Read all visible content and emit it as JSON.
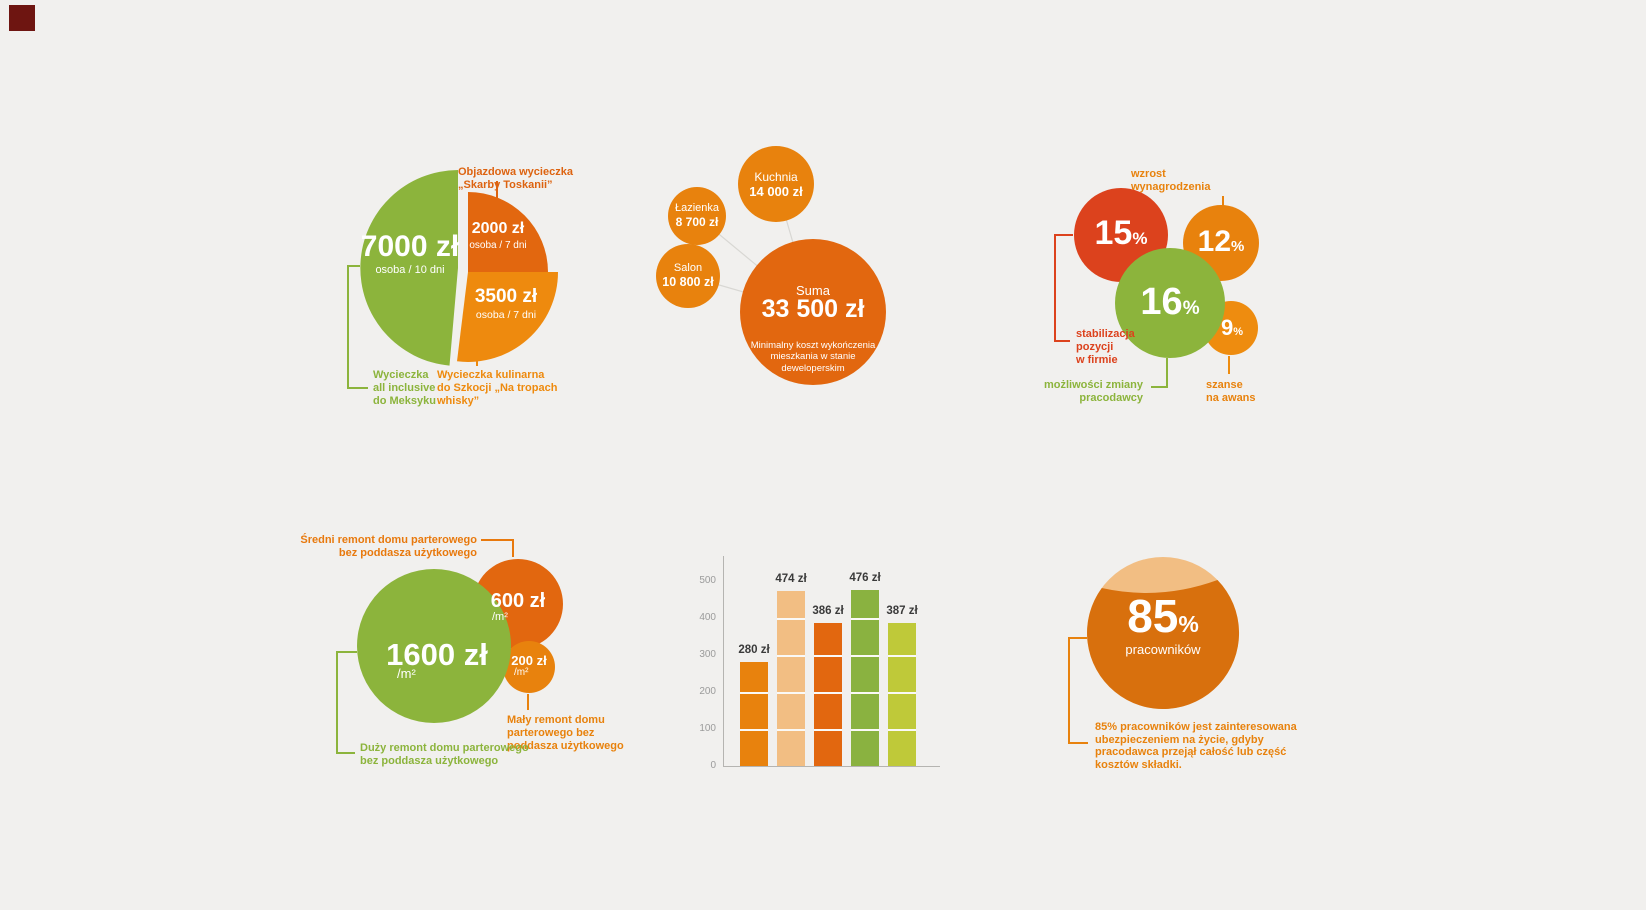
{
  "page": {
    "background": "#F1F0EE",
    "corner_mark_color": "#6E1511"
  },
  "colors": {
    "green": "#8CB43C",
    "dark_orange": "#E2670F",
    "orange": "#E8820D",
    "light_orange": "#EE8A0E",
    "tan": "#F2BE83",
    "red": "#DC421D",
    "bar_green": "#8AB240",
    "yellow_green": "#BFC939",
    "axis_gray": "#B5B4B1",
    "tick_gray": "#9B9B9B",
    "value_text": "#3A3A3A"
  },
  "trip_pie": {
    "slices": {
      "mexico": {
        "value": "7000 zł",
        "unit": "osoba / 10 dni",
        "label": "Wycieczka\nall inclusive\ndo Meksyku"
      },
      "tuscany": {
        "value": "2000 zł",
        "unit": "osoba / 7 dni",
        "label": "Objazdowa wycieczka\n„Skarby Toskanii”"
      },
      "scotland": {
        "value": "3500 zł",
        "unit": "osoba / 7 dni",
        "label": "Wycieczka kulinarna\ndo Szkocji „Na tropach\nwhisky”"
      }
    }
  },
  "apartment_bubbles": {
    "kuchnia": {
      "name": "Kuchnia",
      "value": "14 000 zł"
    },
    "lazienka": {
      "name": "Łazienka",
      "value": "8 700 zł"
    },
    "salon": {
      "name": "Salon",
      "value": "10 800 zł"
    },
    "suma": {
      "name": "Suma",
      "value": "33 500 zł",
      "note": "Minimalny koszt wykończenia\nmieszkania w stanie\ndeweloperskim"
    }
  },
  "career_bubbles": {
    "stabilizacja": {
      "pct": "15",
      "unit": "%",
      "label": "stabilizacja\npozycji\nw firmie"
    },
    "wzrost": {
      "pct": "12",
      "unit": "%",
      "label": "wzrost\nwynagrodzenia"
    },
    "zmiana": {
      "pct": "16",
      "unit": "%",
      "label": "możliwości zmiany\npracodawcy"
    },
    "awans": {
      "pct": "9",
      "unit": "%",
      "label": "szanse\nna awans"
    }
  },
  "renovation_bubbles": {
    "duzy": {
      "value": "1600 zł",
      "unit": "/m²",
      "label": "Duży remont domu parterowego\nbez poddasza użytkowego"
    },
    "sredni": {
      "value": "600 zł",
      "unit": "/m²",
      "label": "Średni remont domu parterowego\nbez poddasza użytkowego"
    },
    "maly": {
      "value": "200 zł",
      "unit": "/m²",
      "label": "Mały remont domu\nparterowego bez\npoddasza użytkowego"
    }
  },
  "insurance": {
    "pct": "85",
    "unit": "%",
    "sub": "pracowników",
    "note": "85% pracowników jest zainteresowana\nubezpieczeniem na życie, gdyby\npracodawca przejął całość lub część\nkosztów składki."
  },
  "chart_data": [
    {
      "type": "pie",
      "slices": [
        {
          "label": "Wycieczka all inclusive do Meksyku",
          "value": 7000,
          "value_label": "7000 zł",
          "unit": "osoba / 10 dni",
          "color": "#8CB43C"
        },
        {
          "label": "Objazdowa wycieczka „Skarby Toskanii”",
          "value": 2000,
          "value_label": "2000 zł",
          "unit": "osoba / 7 dni",
          "color": "#E2670F"
        },
        {
          "label": "Wycieczka kulinarna do Szkocji „Na tropach whisky”",
          "value": 3500,
          "value_label": "3500 zł",
          "unit": "osoba / 7 dni",
          "color": "#EE8A0E"
        }
      ]
    },
    {
      "type": "bubble",
      "bubbles": [
        {
          "label": "Kuchnia",
          "value": 14000,
          "value_label": "14 000 zł",
          "color": "#E8820D"
        },
        {
          "label": "Łazienka",
          "value": 8700,
          "value_label": "8 700 zł",
          "color": "#E8820D"
        },
        {
          "label": "Salon",
          "value": 10800,
          "value_label": "10 800 zł",
          "color": "#E8820D"
        },
        {
          "label": "Suma",
          "value": 33500,
          "value_label": "33 500 zł",
          "color": "#E2670F",
          "note": "Minimalny koszt wykończenia mieszkania w stanie deweloperskim"
        }
      ]
    },
    {
      "type": "bubble",
      "unit": "%",
      "bubbles": [
        {
          "label": "stabilizacja pozycji w firmie",
          "value": 15,
          "color": "#DC421D"
        },
        {
          "label": "wzrost wynagrodzenia",
          "value": 12,
          "color": "#E8820D"
        },
        {
          "label": "możliwości zmiany pracodawcy",
          "value": 16,
          "color": "#8CB43C"
        },
        {
          "label": "szanse na awans",
          "value": 9,
          "color": "#EE8C0F"
        }
      ]
    },
    {
      "type": "bubble",
      "unit": "zł/m²",
      "bubbles": [
        {
          "label": "Duży remont domu parterowego bez poddasza użytkowego",
          "value": 1600,
          "color": "#8CB43C"
        },
        {
          "label": "Średni remont domu parterowego bez poddasza użytkowego",
          "value": 600,
          "color": "#E2670F"
        },
        {
          "label": "Mały remont domu parterowego bez poddasza użytkowego",
          "value": 200,
          "color": "#E8820D"
        }
      ]
    },
    {
      "type": "bar",
      "values": [
        280,
        474,
        386,
        476,
        387
      ],
      "bar_labels": [
        "280 zł",
        "474 zł",
        "386 zł",
        "476 zł",
        "387 zł"
      ],
      "colors": [
        "#E8820D",
        "#F2BE83",
        "#E2670F",
        "#8AB240",
        "#BFC939"
      ],
      "yticks": [
        0,
        100,
        200,
        300,
        400,
        500
      ],
      "ylim": [
        0,
        500
      ],
      "grid": "white segment lines every 100 inside bars"
    },
    {
      "type": "gauge",
      "value": 85,
      "unit": "%",
      "label": "pracowników",
      "note": "85% pracowników jest zainteresowana ubezpieczeniem na życie, gdyby pracodawca przejął całość lub część kosztów składki."
    }
  ]
}
